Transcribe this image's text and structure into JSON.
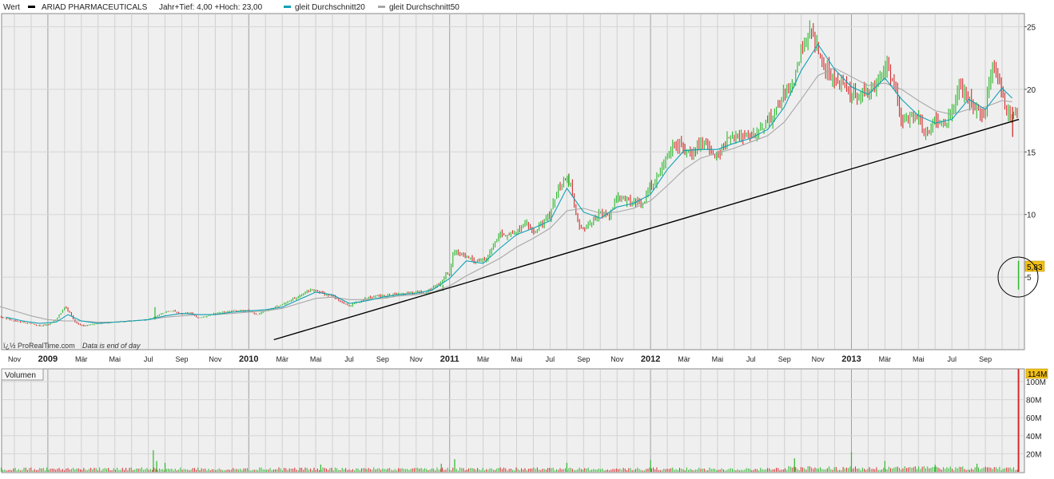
{
  "header": {
    "value_label": "Wert",
    "ticker": "ARIAD PHARMACEUTICALS",
    "range_text": "Jahr+Tief: 4,00 +Hoch: 23,00",
    "ma20_label": "gleit Durchschnitt20",
    "ma50_label": "gleit Durchschnitt50"
  },
  "footer": {
    "source": "ï¿½ ProRealTime.com",
    "note": "Data is end of day"
  },
  "volume_panel": {
    "label": "Volumen",
    "current_volume": "114M"
  },
  "price_marker": "5,83",
  "colors": {
    "price_up": "#2eb82e",
    "price_down": "#d42d2d",
    "ma20": "#10a0b4",
    "ma50": "#a8a8a8",
    "trendline": "#000000",
    "panel_bg": "#efefef",
    "grid_major": "#a0a0a0",
    "grid_minor": "#d0d0d0"
  },
  "chart_data": [
    {
      "type": "line",
      "title": "ARIAD PHARMACEUTICALS",
      "y_ticks": [
        5,
        10,
        15,
        20,
        25
      ],
      "ylim": [
        0,
        26.2
      ],
      "x_ticks": [
        {
          "label": "Nov",
          "t": -2
        },
        {
          "label": "2009",
          "t": 0
        },
        {
          "label": "Mär",
          "t": 2
        },
        {
          "label": "Mai",
          "t": 4
        },
        {
          "label": "Jul",
          "t": 6
        },
        {
          "label": "Sep",
          "t": 8
        },
        {
          "label": "Nov",
          "t": 10
        },
        {
          "label": "2010",
          "t": 12
        },
        {
          "label": "Mär",
          "t": 14
        },
        {
          "label": "Mai",
          "t": 16
        },
        {
          "label": "Jul",
          "t": 18
        },
        {
          "label": "Sep",
          "t": 20
        },
        {
          "label": "Nov",
          "t": 22
        },
        {
          "label": "2011",
          "t": 24
        },
        {
          "label": "Mär",
          "t": 26
        },
        {
          "label": "Mai",
          "t": 28
        },
        {
          "label": "Jul",
          "t": 30
        },
        {
          "label": "Sep",
          "t": 32
        },
        {
          "label": "Nov",
          "t": 34
        },
        {
          "label": "2012",
          "t": 36
        },
        {
          "label": "Mär",
          "t": 38
        },
        {
          "label": "Mai",
          "t": 40
        },
        {
          "label": "Jul",
          "t": 42
        },
        {
          "label": "Sep",
          "t": 44
        },
        {
          "label": "Nov",
          "t": 46
        },
        {
          "label": "2013",
          "t": 48
        },
        {
          "label": "Mär",
          "t": 50
        },
        {
          "label": "Mai",
          "t": 52
        },
        {
          "label": "Jul",
          "t": 54
        },
        {
          "label": "Sep",
          "t": 56
        }
      ],
      "price_series": {
        "name": "ARIAD PHARMACEUTICALS",
        "points": [
          [
            -3.0,
            1.9
          ],
          [
            -2.5,
            1.7
          ],
          [
            -2.0,
            1.5
          ],
          [
            -1.5,
            1.4
          ],
          [
            -1.0,
            1.3
          ],
          [
            -0.5,
            1.1
          ],
          [
            0.0,
            1.2
          ],
          [
            0.5,
            1.6
          ],
          [
            1.0,
            2.6
          ],
          [
            1.3,
            2.2
          ],
          [
            1.6,
            1.4
          ],
          [
            2.0,
            1.1
          ],
          [
            3.0,
            1.3
          ],
          [
            4.0,
            1.4
          ],
          [
            5.0,
            1.5
          ],
          [
            6.0,
            1.6
          ],
          [
            6.5,
            1.9
          ],
          [
            7.0,
            2.2
          ],
          [
            7.5,
            2.3
          ],
          [
            8.0,
            2.0
          ],
          [
            8.5,
            2.2
          ],
          [
            9.0,
            1.7
          ],
          [
            10.0,
            2.1
          ],
          [
            11.0,
            2.3
          ],
          [
            12.0,
            2.3
          ],
          [
            12.5,
            2.0
          ],
          [
            13.0,
            2.3
          ],
          [
            14.0,
            2.8
          ],
          [
            15.0,
            3.5
          ],
          [
            15.5,
            3.9
          ],
          [
            16.0,
            4.0
          ],
          [
            16.5,
            3.6
          ],
          [
            17.0,
            3.5
          ],
          [
            17.5,
            3.0
          ],
          [
            18.0,
            2.7
          ],
          [
            18.5,
            3.0
          ],
          [
            19.0,
            3.3
          ],
          [
            20.0,
            3.5
          ],
          [
            21.0,
            3.6
          ],
          [
            22.0,
            3.8
          ],
          [
            22.5,
            3.7
          ],
          [
            23.0,
            4.2
          ],
          [
            23.5,
            4.5
          ],
          [
            23.8,
            5.4
          ],
          [
            24.0,
            5.3
          ],
          [
            24.2,
            7.0
          ],
          [
            24.5,
            6.9
          ],
          [
            25.0,
            6.6
          ],
          [
            25.5,
            6.2
          ],
          [
            26.0,
            6.3
          ],
          [
            26.5,
            7.1
          ],
          [
            27.0,
            8.6
          ],
          [
            27.5,
            8.3
          ],
          [
            28.0,
            8.7
          ],
          [
            28.5,
            9.5
          ],
          [
            29.0,
            8.7
          ],
          [
            29.5,
            9.2
          ],
          [
            30.0,
            10.0
          ],
          [
            30.5,
            12.1
          ],
          [
            31.0,
            13.1
          ],
          [
            31.3,
            12.0
          ],
          [
            31.6,
            9.3
          ],
          [
            32.0,
            8.8
          ],
          [
            32.5,
            9.3
          ],
          [
            33.0,
            10.2
          ],
          [
            33.5,
            9.7
          ],
          [
            34.0,
            11.5
          ],
          [
            34.5,
            11.0
          ],
          [
            35.0,
            11.0
          ],
          [
            35.5,
            10.8
          ],
          [
            36.0,
            12.3
          ],
          [
            36.5,
            13.2
          ],
          [
            37.0,
            14.8
          ],
          [
            37.5,
            15.6
          ],
          [
            38.0,
            15.2
          ],
          [
            38.5,
            14.8
          ],
          [
            39.0,
            15.8
          ],
          [
            39.5,
            15.4
          ],
          [
            40.0,
            14.8
          ],
          [
            40.5,
            15.8
          ],
          [
            41.0,
            16.2
          ],
          [
            42.0,
            16.3
          ],
          [
            42.5,
            16.6
          ],
          [
            43.0,
            17.2
          ],
          [
            43.5,
            18.3
          ],
          [
            44.0,
            19.5
          ],
          [
            44.5,
            20.3
          ],
          [
            45.0,
            23.2
          ],
          [
            45.5,
            24.6
          ],
          [
            45.8,
            24.2
          ],
          [
            46.0,
            22.8
          ],
          [
            46.5,
            21.5
          ],
          [
            47.0,
            20.8
          ],
          [
            47.5,
            20.3
          ],
          [
            48.0,
            19.6
          ],
          [
            48.5,
            19.6
          ],
          [
            49.0,
            19.8
          ],
          [
            49.5,
            20.7
          ],
          [
            50.0,
            21.9
          ],
          [
            50.5,
            20.8
          ],
          [
            51.0,
            17.5
          ],
          [
            51.5,
            17.9
          ],
          [
            52.0,
            17.6
          ],
          [
            52.5,
            16.3
          ],
          [
            53.0,
            17.8
          ],
          [
            53.5,
            17.0
          ],
          [
            54.0,
            18.1
          ],
          [
            54.5,
            20.3
          ],
          [
            55.0,
            19.2
          ],
          [
            55.5,
            18.1
          ],
          [
            56.0,
            18.1
          ],
          [
            56.3,
            21.6
          ],
          [
            56.5,
            22.1
          ],
          [
            56.8,
            20.5
          ],
          [
            57.2,
            18.6
          ],
          [
            57.6,
            17.6
          ],
          [
            57.9,
            18.4
          ]
        ]
      },
      "last_bar": {
        "t": 57.98,
        "high": 6.3,
        "low": 4.0,
        "close": 5.83
      },
      "ma20": {
        "name": "gleit Durchschnitt20",
        "points": [
          [
            -2.5,
            1.8
          ],
          [
            -1.5,
            1.5
          ],
          [
            -0.5,
            1.3
          ],
          [
            0.5,
            1.4
          ],
          [
            1.2,
            2.0
          ],
          [
            2.0,
            1.5
          ],
          [
            3.0,
            1.3
          ],
          [
            4.0,
            1.4
          ],
          [
            5.0,
            1.5
          ],
          [
            6.0,
            1.6
          ],
          [
            7.0,
            1.9
          ],
          [
            8.0,
            2.1
          ],
          [
            9.0,
            2.0
          ],
          [
            10.0,
            2.0
          ],
          [
            11.0,
            2.2
          ],
          [
            12.0,
            2.3
          ],
          [
            13.0,
            2.4
          ],
          [
            14.0,
            2.6
          ],
          [
            15.0,
            3.2
          ],
          [
            16.0,
            3.8
          ],
          [
            17.0,
            3.6
          ],
          [
            18.0,
            2.9
          ],
          [
            19.0,
            3.1
          ],
          [
            20.0,
            3.4
          ],
          [
            21.0,
            3.6
          ],
          [
            22.0,
            3.7
          ],
          [
            23.0,
            4.0
          ],
          [
            24.0,
            4.9
          ],
          [
            25.0,
            6.3
          ],
          [
            26.0,
            6.1
          ],
          [
            27.0,
            7.3
          ],
          [
            28.0,
            8.4
          ],
          [
            29.0,
            8.9
          ],
          [
            30.0,
            9.5
          ],
          [
            31.0,
            12.1
          ],
          [
            32.0,
            10.2
          ],
          [
            33.0,
            9.7
          ],
          [
            34.0,
            10.6
          ],
          [
            35.0,
            10.9
          ],
          [
            36.0,
            11.6
          ],
          [
            37.0,
            13.6
          ],
          [
            38.0,
            15.1
          ],
          [
            39.0,
            15.2
          ],
          [
            40.0,
            15.2
          ],
          [
            41.0,
            15.7
          ],
          [
            42.0,
            16.1
          ],
          [
            43.0,
            16.8
          ],
          [
            44.0,
            18.6
          ],
          [
            45.0,
            21.5
          ],
          [
            46.0,
            23.6
          ],
          [
            47.0,
            21.6
          ],
          [
            48.0,
            20.2
          ],
          [
            49.0,
            19.6
          ],
          [
            50.0,
            20.9
          ],
          [
            51.0,
            19.2
          ],
          [
            52.0,
            17.9
          ],
          [
            53.0,
            17.3
          ],
          [
            54.0,
            17.6
          ],
          [
            55.0,
            19.2
          ],
          [
            56.0,
            18.4
          ],
          [
            57.0,
            20.1
          ],
          [
            57.6,
            19.3
          ]
        ]
      },
      "ma50": {
        "name": "gleit Durchschnitt50",
        "points": [
          [
            -3.0,
            2.7
          ],
          [
            -2.0,
            2.3
          ],
          [
            -1.0,
            1.9
          ],
          [
            0.0,
            1.6
          ],
          [
            1.0,
            1.5
          ],
          [
            2.0,
            1.5
          ],
          [
            3.0,
            1.4
          ],
          [
            4.0,
            1.4
          ],
          [
            5.0,
            1.5
          ],
          [
            6.0,
            1.6
          ],
          [
            7.0,
            1.8
          ],
          [
            8.0,
            1.9
          ],
          [
            9.0,
            2.0
          ],
          [
            10.0,
            2.0
          ],
          [
            11.0,
            2.1
          ],
          [
            12.0,
            2.2
          ],
          [
            13.0,
            2.3
          ],
          [
            14.0,
            2.5
          ],
          [
            15.0,
            2.9
          ],
          [
            16.0,
            3.3
          ],
          [
            17.0,
            3.4
          ],
          [
            18.0,
            3.2
          ],
          [
            19.0,
            3.2
          ],
          [
            20.0,
            3.3
          ],
          [
            21.0,
            3.5
          ],
          [
            22.0,
            3.6
          ],
          [
            23.0,
            3.8
          ],
          [
            24.0,
            4.3
          ],
          [
            25.0,
            5.1
          ],
          [
            26.0,
            5.8
          ],
          [
            27.0,
            6.5
          ],
          [
            28.0,
            7.4
          ],
          [
            29.0,
            8.1
          ],
          [
            30.0,
            8.9
          ],
          [
            31.0,
            10.3
          ],
          [
            32.0,
            10.5
          ],
          [
            33.0,
            10.1
          ],
          [
            34.0,
            10.2
          ],
          [
            35.0,
            10.5
          ],
          [
            36.0,
            11.1
          ],
          [
            37.0,
            12.3
          ],
          [
            38.0,
            13.6
          ],
          [
            39.0,
            14.5
          ],
          [
            40.0,
            14.9
          ],
          [
            41.0,
            15.3
          ],
          [
            42.0,
            15.8
          ],
          [
            43.0,
            16.3
          ],
          [
            44.0,
            17.4
          ],
          [
            45.0,
            19.2
          ],
          [
            46.0,
            21.1
          ],
          [
            47.0,
            21.7
          ],
          [
            48.0,
            21.0
          ],
          [
            49.0,
            20.3
          ],
          [
            50.0,
            20.5
          ],
          [
            51.0,
            20.0
          ],
          [
            52.0,
            19.1
          ],
          [
            53.0,
            18.3
          ],
          [
            54.0,
            18.0
          ],
          [
            55.0,
            18.4
          ],
          [
            56.0,
            18.6
          ],
          [
            57.0,
            19.1
          ],
          [
            57.6,
            19.0
          ]
        ]
      },
      "trendline": {
        "from": [
          13.5,
          0.0
        ],
        "to": [
          58.0,
          17.6
        ]
      }
    },
    {
      "type": "bar",
      "title": "Volumen",
      "y_ticks": [
        "20M",
        "40M",
        "60M",
        "80M",
        "100M"
      ],
      "y_tick_values": [
        20,
        40,
        60,
        80,
        100
      ],
      "ylim": [
        0,
        114
      ],
      "unit": "M",
      "spikes": [
        [
          6.3,
          24
        ],
        [
          6.5,
          12
        ],
        [
          7.0,
          10
        ],
        [
          16.3,
          8
        ],
        [
          23.5,
          9
        ],
        [
          24.3,
          14
        ],
        [
          31.0,
          10
        ],
        [
          36.0,
          13
        ],
        [
          44.6,
          15
        ],
        [
          48.0,
          22
        ],
        [
          50.0,
          12
        ],
        [
          53.0,
          8
        ],
        [
          55.5,
          9
        ],
        [
          57.98,
          114
        ]
      ],
      "baseline_volume": 3.5
    }
  ]
}
